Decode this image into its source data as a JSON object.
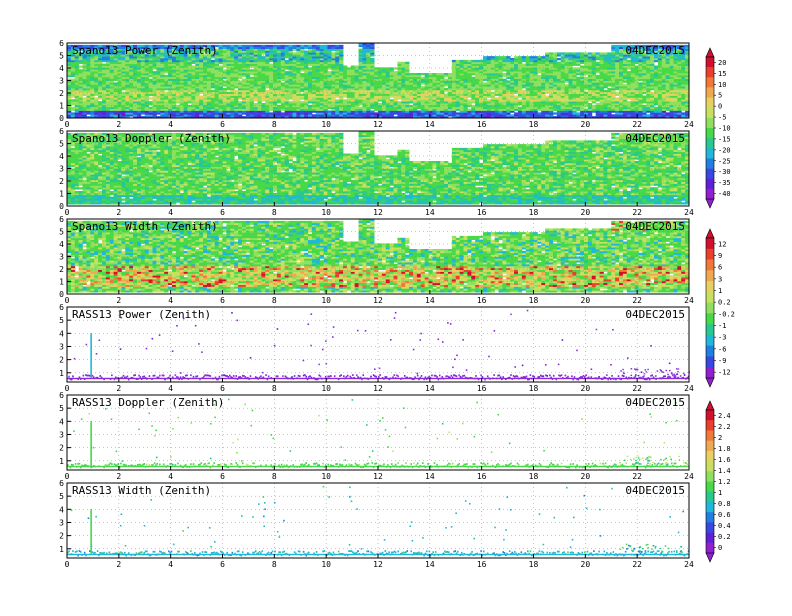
{
  "chart_data": [
    {
      "type": "heatmap",
      "title": "Spano13 Power (Zenith)",
      "date": "04DEC2015",
      "x_ticks": [
        0,
        2,
        4,
        6,
        8,
        10,
        12,
        14,
        16,
        18,
        20,
        22,
        24
      ],
      "y_ticks": [
        0,
        1,
        2,
        3,
        4,
        5,
        6
      ],
      "xlim": [
        0,
        24
      ],
      "ylim": [
        0,
        6
      ],
      "grid": true,
      "colorbar": "cb1",
      "profile": "power"
    },
    {
      "type": "heatmap",
      "title": "Spano13 Doppler (Zenith)",
      "date": "04DEC2015",
      "x_ticks": [
        0,
        2,
        4,
        6,
        8,
        10,
        12,
        14,
        16,
        18,
        20,
        22,
        24
      ],
      "y_ticks": [
        0,
        1,
        2,
        3,
        4,
        5,
        6
      ],
      "xlim": [
        0,
        24
      ],
      "ylim": [
        0,
        6
      ],
      "grid": true,
      "colorbar": "cb1",
      "profile": "doppler"
    },
    {
      "type": "heatmap",
      "title": "Spano13 Width (Zenith)",
      "date": "04DEC2015",
      "x_ticks": [
        0,
        2,
        4,
        6,
        8,
        10,
        12,
        14,
        16,
        18,
        20,
        22,
        24
      ],
      "y_ticks": [
        0,
        1,
        2,
        3,
        4,
        5,
        6
      ],
      "xlim": [
        0,
        24
      ],
      "ylim": [
        0,
        6
      ],
      "grid": true,
      "colorbar": "cb2",
      "profile": "width"
    },
    {
      "type": "heatmap",
      "title": "RASS13 Power (Zenith)",
      "date": "04DEC2015",
      "x_ticks": [
        0,
        2,
        4,
        6,
        8,
        10,
        12,
        14,
        16,
        18,
        20,
        22,
        24
      ],
      "y_ticks": [
        1,
        2,
        3,
        4,
        5,
        6
      ],
      "xlim": [
        0,
        24
      ],
      "ylim": [
        0.3,
        6
      ],
      "grid": true,
      "colorbar": "cb2",
      "profile": "rass_power"
    },
    {
      "type": "heatmap",
      "title": "RASS13 Doppler (Zenith)",
      "date": "04DEC2015",
      "x_ticks": [
        0,
        2,
        4,
        6,
        8,
        10,
        12,
        14,
        16,
        18,
        20,
        22,
        24
      ],
      "y_ticks": [
        1,
        2,
        3,
        4,
        5,
        6
      ],
      "xlim": [
        0,
        24
      ],
      "ylim": [
        0.3,
        6
      ],
      "grid": true,
      "colorbar": "cb3",
      "profile": "rass_doppler"
    },
    {
      "type": "heatmap",
      "title": "RASS13 Width (Zenith)",
      "date": "04DEC2015",
      "x_ticks": [
        0,
        2,
        4,
        6,
        8,
        10,
        12,
        14,
        16,
        18,
        20,
        22,
        24
      ],
      "y_ticks": [
        1,
        2,
        3,
        4,
        5,
        6
      ],
      "xlim": [
        0,
        24
      ],
      "ylim": [
        0.3,
        6
      ],
      "grid": true,
      "colorbar": "cb3",
      "profile": "rass_width"
    }
  ],
  "colorbars": {
    "cb1": {
      "labels": [
        "20",
        "15",
        "10",
        "5",
        "0",
        "-5",
        "-10",
        "-15",
        "-20",
        "-25",
        "-30",
        "-35",
        "-40"
      ],
      "colors": [
        "#d0102c",
        "#e8402c",
        "#f07838",
        "#f0a850",
        "#e8d060",
        "#c8e060",
        "#90e060",
        "#48d848",
        "#28c890",
        "#20b8d8",
        "#2080e0",
        "#3848e0",
        "#6020d8",
        "#9020d0"
      ]
    },
    "cb2": {
      "labels": [
        "12",
        "9",
        "6",
        "3",
        "1",
        "0.2",
        "-0.2",
        "-1",
        "-3",
        "-6",
        "-9",
        "-12"
      ],
      "colors": [
        "#d0102c",
        "#e8402c",
        "#f07838",
        "#f0a850",
        "#e8d060",
        "#c8e060",
        "#90e060",
        "#48d848",
        "#28c890",
        "#20b8d8",
        "#2080e0",
        "#3848e0",
        "#9020d0"
      ]
    },
    "cb3": {
      "labels": [
        "2.4",
        "2.2",
        "2",
        "1.8",
        "1.6",
        "1.4",
        "1.2",
        "1",
        "0.8",
        "0.6",
        "0.4",
        "0.2",
        "0"
      ],
      "colors": [
        "#d0102c",
        "#e8402c",
        "#f07838",
        "#f0a850",
        "#e8d060",
        "#c8e060",
        "#90e060",
        "#48d848",
        "#28c890",
        "#20b8d8",
        "#2080e0",
        "#3848e0",
        "#6020d8",
        "#9020d0"
      ]
    }
  }
}
